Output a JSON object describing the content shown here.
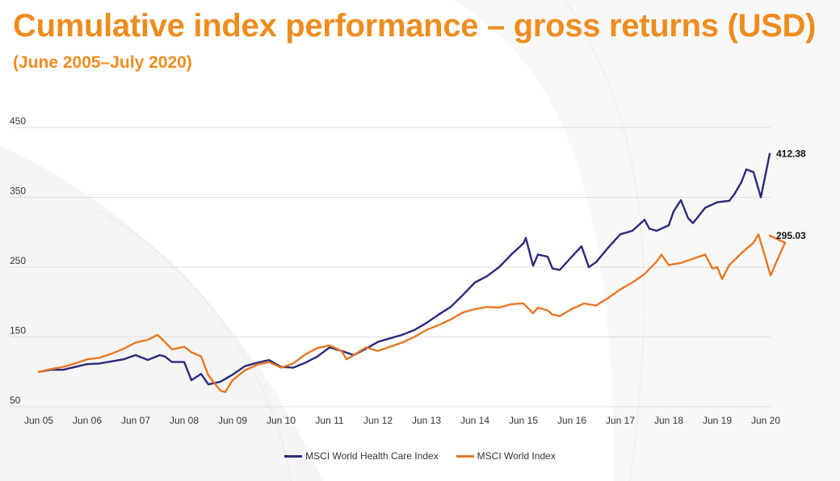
{
  "header": {
    "title": "Cumulative index performance – gross returns (USD)",
    "subtitle": "(June 2005–July 2020)"
  },
  "colors": {
    "accent": "#EE8C1E",
    "health_care": "#2B2A7B",
    "world": "#E87722",
    "grid": "#DDDDDD"
  },
  "chart_data": {
    "type": "line",
    "title": "Cumulative index performance – gross returns (USD)",
    "subtitle": "(June 2005–July 2020)",
    "xlabel": "",
    "ylabel": "",
    "ylim": [
      50,
      450
    ],
    "yticks": [
      50,
      150,
      250,
      350,
      450
    ],
    "xlim": [
      0,
      15.083
    ],
    "xticks": [
      {
        "pos": 0,
        "label": "Jun 05"
      },
      {
        "pos": 1,
        "label": "Jun 06"
      },
      {
        "pos": 2,
        "label": "Jun 07"
      },
      {
        "pos": 3,
        "label": "Jun 08"
      },
      {
        "pos": 4,
        "label": "Jun 09"
      },
      {
        "pos": 5,
        "label": "Jun 10"
      },
      {
        "pos": 6,
        "label": "Jun 11"
      },
      {
        "pos": 7,
        "label": "Jun 12"
      },
      {
        "pos": 8,
        "label": "Jun 13"
      },
      {
        "pos": 9,
        "label": "Jun 14"
      },
      {
        "pos": 10,
        "label": "Jun 15"
      },
      {
        "pos": 11,
        "label": "Jun 16"
      },
      {
        "pos": 12,
        "label": "Jun 17"
      },
      {
        "pos": 13,
        "label": "Jun 18"
      },
      {
        "pos": 14,
        "label": "Jun 19"
      },
      {
        "pos": 15,
        "label": "Jun 20"
      }
    ],
    "grid": true,
    "legend_position": "bottom-center",
    "series": [
      {
        "name": "MSCI World Health Care Index",
        "color": "#2B2A7B",
        "end_label": "412.38",
        "points": [
          [
            0,
            100
          ],
          [
            0.25,
            103
          ],
          [
            0.5,
            103
          ],
          [
            0.75,
            107
          ],
          [
            1,
            111
          ],
          [
            1.25,
            112
          ],
          [
            1.5,
            115
          ],
          [
            1.75,
            118
          ],
          [
            2,
            124
          ],
          [
            2.25,
            117
          ],
          [
            2.5,
            124
          ],
          [
            2.6,
            122
          ],
          [
            2.75,
            114
          ],
          [
            3,
            114
          ],
          [
            3.15,
            88
          ],
          [
            3.35,
            97
          ],
          [
            3.5,
            82
          ],
          [
            3.75,
            86
          ],
          [
            4,
            96
          ],
          [
            4.25,
            108
          ],
          [
            4.5,
            113
          ],
          [
            4.75,
            117
          ],
          [
            5,
            107
          ],
          [
            5.25,
            106
          ],
          [
            5.5,
            113
          ],
          [
            5.75,
            122
          ],
          [
            6,
            135
          ],
          [
            6.25,
            130
          ],
          [
            6.5,
            124
          ],
          [
            6.75,
            133
          ],
          [
            7,
            143
          ],
          [
            7.25,
            148
          ],
          [
            7.5,
            153
          ],
          [
            7.75,
            160
          ],
          [
            8,
            170
          ],
          [
            8.25,
            182
          ],
          [
            8.5,
            193
          ],
          [
            8.75,
            210
          ],
          [
            9,
            228
          ],
          [
            9.25,
            237
          ],
          [
            9.5,
            250
          ],
          [
            9.75,
            268
          ],
          [
            10,
            284
          ],
          [
            10.05,
            292
          ],
          [
            10.2,
            252
          ],
          [
            10.3,
            268
          ],
          [
            10.5,
            265
          ],
          [
            10.6,
            248
          ],
          [
            10.75,
            246
          ],
          [
            11,
            265
          ],
          [
            11.2,
            280
          ],
          [
            11.35,
            250
          ],
          [
            11.5,
            257
          ],
          [
            11.75,
            278
          ],
          [
            12,
            297
          ],
          [
            12.25,
            302
          ],
          [
            12.5,
            318
          ],
          [
            12.6,
            305
          ],
          [
            12.75,
            302
          ],
          [
            13,
            310
          ],
          [
            13.1,
            330
          ],
          [
            13.25,
            346
          ],
          [
            13.4,
            320
          ],
          [
            13.5,
            313
          ],
          [
            13.75,
            335
          ],
          [
            14,
            343
          ],
          [
            14.25,
            345
          ],
          [
            14.35,
            354
          ],
          [
            14.5,
            372
          ],
          [
            14.6,
            390
          ],
          [
            14.75,
            386
          ],
          [
            14.9,
            350
          ],
          [
            15,
            384
          ],
          [
            15.083,
            412.38
          ]
        ]
      },
      {
        "name": "MSCI World Index",
        "color": "#E87722",
        "end_label": "295.03",
        "points": [
          [
            0,
            100
          ],
          [
            0.25,
            104
          ],
          [
            0.5,
            107
          ],
          [
            0.75,
            112
          ],
          [
            1,
            118
          ],
          [
            1.25,
            120
          ],
          [
            1.5,
            126
          ],
          [
            1.75,
            133
          ],
          [
            2,
            142
          ],
          [
            2.25,
            146
          ],
          [
            2.45,
            153
          ],
          [
            2.6,
            143
          ],
          [
            2.75,
            132
          ],
          [
            3,
            136
          ],
          [
            3.15,
            128
          ],
          [
            3.35,
            122
          ],
          [
            3.5,
            95
          ],
          [
            3.75,
            73
          ],
          [
            3.85,
            71
          ],
          [
            4,
            88
          ],
          [
            4.25,
            102
          ],
          [
            4.5,
            110
          ],
          [
            4.75,
            114
          ],
          [
            5,
            106
          ],
          [
            5.25,
            112
          ],
          [
            5.5,
            125
          ],
          [
            5.75,
            134
          ],
          [
            6,
            138
          ],
          [
            6.25,
            130
          ],
          [
            6.35,
            118
          ],
          [
            6.5,
            124
          ],
          [
            6.75,
            135
          ],
          [
            7,
            130
          ],
          [
            7.25,
            136
          ],
          [
            7.5,
            142
          ],
          [
            7.75,
            150
          ],
          [
            8,
            160
          ],
          [
            8.25,
            167
          ],
          [
            8.5,
            175
          ],
          [
            8.75,
            185
          ],
          [
            9,
            190
          ],
          [
            9.25,
            193
          ],
          [
            9.5,
            192
          ],
          [
            9.75,
            197
          ],
          [
            10,
            198
          ],
          [
            10.2,
            184
          ],
          [
            10.3,
            192
          ],
          [
            10.5,
            188
          ],
          [
            10.6,
            182
          ],
          [
            10.75,
            180
          ],
          [
            11,
            190
          ],
          [
            11.25,
            198
          ],
          [
            11.5,
            195
          ],
          [
            11.75,
            206
          ],
          [
            12,
            218
          ],
          [
            12.25,
            228
          ],
          [
            12.5,
            240
          ],
          [
            12.75,
            258
          ],
          [
            12.85,
            268
          ],
          [
            13,
            253
          ],
          [
            13.25,
            256
          ],
          [
            13.5,
            262
          ],
          [
            13.75,
            268
          ],
          [
            13.9,
            248
          ],
          [
            14,
            250
          ],
          [
            14.1,
            233
          ],
          [
            14.25,
            253
          ],
          [
            14.5,
            270
          ],
          [
            14.75,
            285
          ],
          [
            14.85,
            297
          ],
          [
            15,
            262
          ],
          [
            15.1,
            238
          ],
          [
            15.25,
            262
          ],
          [
            15.4,
            285
          ],
          [
            15.083,
            295.03
          ]
        ]
      }
    ]
  }
}
